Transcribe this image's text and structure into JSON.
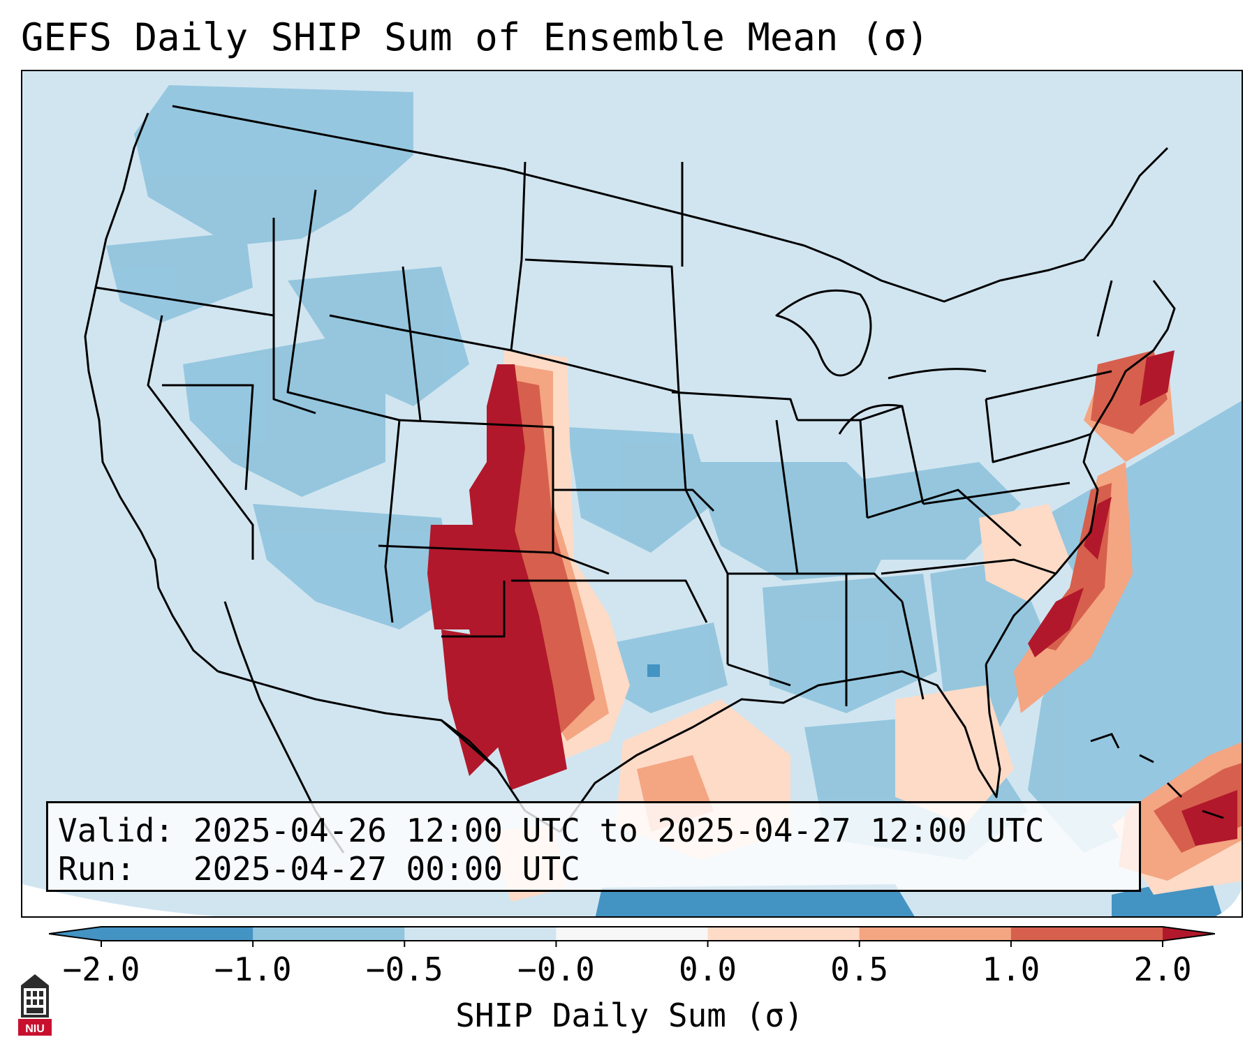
{
  "title": "GEFS Daily SHIP Sum of Ensemble Mean (σ)",
  "valid_box": {
    "valid_label": "Valid:",
    "valid_range": "2025-04-26 12:00 UTC to 2025-04-27 12:00 UTC",
    "run_label": "Run:",
    "run_time": "2025-04-27 00:00 UTC"
  },
  "colorbar": {
    "label": "SHIP Daily Sum (σ)",
    "ticks": [
      "−2.0",
      "−1.0",
      "−0.5",
      "−0.0",
      "0.0",
      "0.5",
      "1.0",
      "2.0"
    ],
    "colors": [
      "#4393c3",
      "#92c5de",
      "#d1e5f0",
      "#f7f7f7",
      "#fddbc7",
      "#f4a582",
      "#d6604d",
      "#b2182b"
    ],
    "extend": "both"
  },
  "map": {
    "region": "Contiguous United States",
    "background_color": "#d1e5f0"
  },
  "logo": {
    "text": "NIU",
    "icon": "niu-logo-icon"
  }
}
